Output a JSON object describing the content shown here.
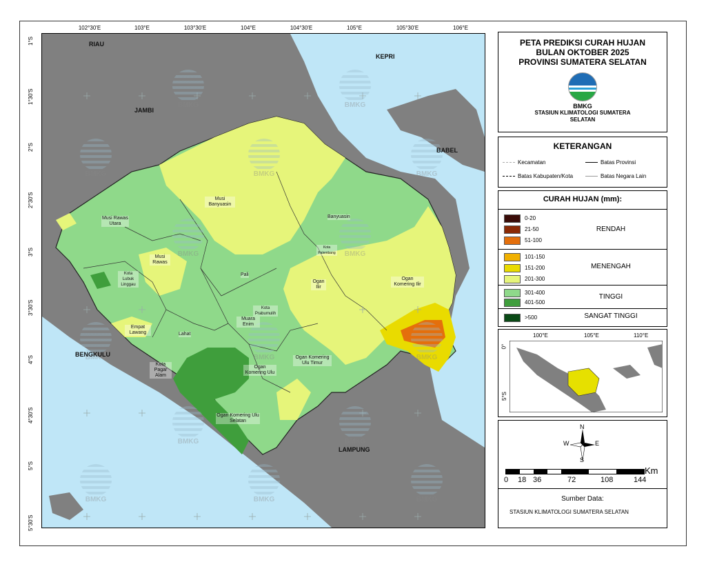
{
  "title": {
    "line1": "PETA PREDIKSI CURAH HUJAN",
    "line2": "BULAN OKTOBER 2025",
    "line3": "PROVINSI SUMATERA SELATAN",
    "org_short": "BMKG",
    "station_line1": "STASIUN KLIMATOLOGI SUMATERA",
    "station_line2": "SELATAN"
  },
  "legend": {
    "title": "KETERANGAN",
    "items": [
      "Kecamatan",
      "Batas Provinsi",
      "Batas Kabupaten/Kota",
      "Batas Negara Lain"
    ]
  },
  "rainfall": {
    "title": "CURAH HUJAN (mm):",
    "classes": [
      {
        "range": "0-20",
        "color": "#3a0c08"
      },
      {
        "range": "21-50",
        "color": "#8b2a06"
      },
      {
        "range": "51-100",
        "color": "#e46f0c"
      },
      {
        "range": "101-150",
        "color": "#f0b000"
      },
      {
        "range": "151-200",
        "color": "#e9db00"
      },
      {
        "range": "201-300",
        "color": "#e6f57a"
      },
      {
        "range": "301-400",
        "color": "#8fd98a"
      },
      {
        "range": "401-500",
        "color": "#3f9e3c"
      },
      {
        "range": ">500",
        "color": "#0a4a16"
      }
    ],
    "categories": [
      "RENDAH",
      "MENENGAH",
      "TINGGI",
      "SANGAT TINGGI"
    ]
  },
  "map": {
    "lon_ticks": [
      "102°30'E",
      "103°E",
      "103°30'E",
      "104°E",
      "104°30'E",
      "105°E",
      "105°30'E",
      "106°E"
    ],
    "lat_ticks": [
      "1°S",
      "1°30'S",
      "2°S",
      "2°30'S",
      "3°S",
      "3°30'S",
      "4°S",
      "4°30'S",
      "5°S",
      "5°30'S"
    ],
    "neighbors": [
      "RIAU",
      "KEPRI",
      "JAMBI",
      "BABEL",
      "BENGKULU",
      "LAMPUNG"
    ],
    "districts": [
      "Musi Rawas Utara",
      "Musi Banyuasin",
      "Banyuasin",
      "Musi Rawas",
      "Kota Palembang",
      "Kota Lubuk Linggau",
      "Pali",
      "Ogan Ilir",
      "Ogan Komering Ilir",
      "Kota Prabumulih",
      "Muara Enim",
      "Empat Lawang",
      "Lahat",
      "Kota Pagar Alam",
      "Ogan Komering Ulu",
      "Ogan Komering Ulu Timur",
      "Ogan Komering Ulu Selatan"
    ],
    "watermark": "BMKG",
    "colors": {
      "sea": "#bfe6f7",
      "land_other": "#808080"
    }
  },
  "inset": {
    "lon_ticks": [
      "100°E",
      "105°E",
      "110°E"
    ],
    "lat_ticks": [
      "0°",
      "5°S"
    ]
  },
  "compass": {
    "n": "N",
    "s": "S",
    "e": "E",
    "w": "W"
  },
  "scale": {
    "unit": "Km",
    "labels": [
      "0",
      "18",
      "36",
      "72",
      "108",
      "144"
    ]
  },
  "source": {
    "title": "Sumber Data:",
    "text": "STASIUN KLIMATOLOGI SUMATERA SELATAN"
  }
}
